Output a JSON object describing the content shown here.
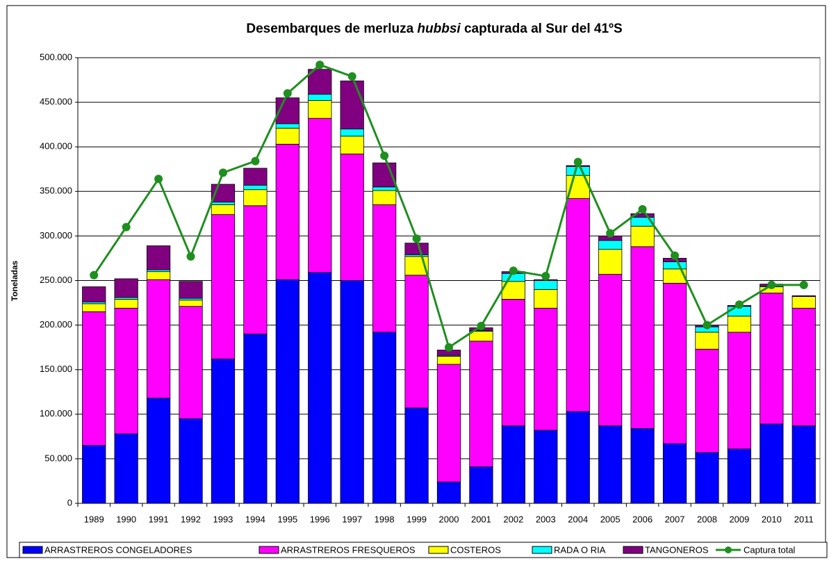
{
  "chart_data": {
    "type": "bar",
    "stacked": true,
    "title": [
      "Desembarques de merluza ",
      "hubbsi",
      " capturada al Sur del 41ºS"
    ],
    "ylabel": "Toneladas",
    "categories": [
      "1989",
      "1990",
      "1991",
      "1992",
      "1993",
      "1994",
      "1995",
      "1996",
      "1997",
      "1998",
      "1999",
      "2000",
      "2001",
      "2002",
      "2003",
      "2004",
      "2005",
      "2006",
      "2007",
      "2008",
      "2009",
      "2010",
      "2011"
    ],
    "series": [
      {
        "name": "ARRASTREROS CONGELADORES",
        "color": "#0000ff",
        "values": [
          65000,
          78000,
          118000,
          95000,
          162000,
          190000,
          251000,
          259000,
          250000,
          192000,
          107000,
          24000,
          41000,
          87000,
          82000,
          103000,
          87000,
          84000,
          67000,
          57000,
          61000,
          89000,
          87000
        ]
      },
      {
        "name": "ARRASTREROS FRESQUEROS",
        "color": "#ff00ff",
        "values": [
          150000,
          141000,
          133000,
          126000,
          162000,
          144000,
          152000,
          173000,
          142000,
          143000,
          149000,
          132000,
          141000,
          142000,
          137000,
          239000,
          170000,
          204000,
          180000,
          116000,
          131000,
          147000,
          132000
        ]
      },
      {
        "name": "COSTEROS",
        "color": "#ffff00",
        "values": [
          9000,
          10000,
          9000,
          7000,
          11000,
          18000,
          18000,
          20000,
          20000,
          16000,
          21000,
          9000,
          11000,
          20000,
          21000,
          26000,
          28000,
          23000,
          16000,
          19000,
          18000,
          7000,
          13000
        ]
      },
      {
        "name": "RADA O RIA",
        "color": "#00ffff",
        "values": [
          2000,
          2000,
          2000,
          2000,
          3000,
          5000,
          5000,
          7000,
          8000,
          4000,
          2000,
          1000,
          1000,
          9000,
          10000,
          10000,
          10000,
          10000,
          8000,
          6000,
          11000,
          1000,
          0
        ]
      },
      {
        "name": "TANGONEROS",
        "color": "#800080",
        "values": [
          17000,
          21000,
          27000,
          19000,
          20000,
          19000,
          29000,
          28000,
          54000,
          27000,
          13000,
          6000,
          3000,
          2000,
          1000,
          1000,
          5000,
          4000,
          4000,
          2000,
          1000,
          2000,
          1000
        ]
      },
      {
        "name": "Captura total",
        "type": "line",
        "color": "#1f8f1f",
        "values": [
          256000,
          310000,
          364000,
          277000,
          371000,
          384000,
          460000,
          492000,
          479000,
          390000,
          297000,
          175000,
          199000,
          261000,
          255000,
          383000,
          303000,
          330000,
          278000,
          200000,
          223000,
          245000,
          245000
        ]
      }
    ],
    "ylim": [
      0,
      500000
    ],
    "yticks": [
      0,
      {
        "value": 50000,
        "label": "50.000"
      },
      {
        "value": 100000,
        "label": "100.000"
      },
      {
        "value": 150000,
        "label": "150.000"
      },
      {
        "value": 200000,
        "label": "200.000"
      },
      {
        "value": 250000,
        "label": "250.000"
      },
      {
        "value": 300000,
        "label": "300.000"
      },
      {
        "value": 350000,
        "label": "350.000"
      },
      {
        "value": 400000,
        "label": "400.000"
      },
      {
        "value": 450000,
        "label": "450.000"
      },
      {
        "value": 500000,
        "label": "500.000"
      }
    ],
    "grid": true,
    "legend": "bottom"
  }
}
